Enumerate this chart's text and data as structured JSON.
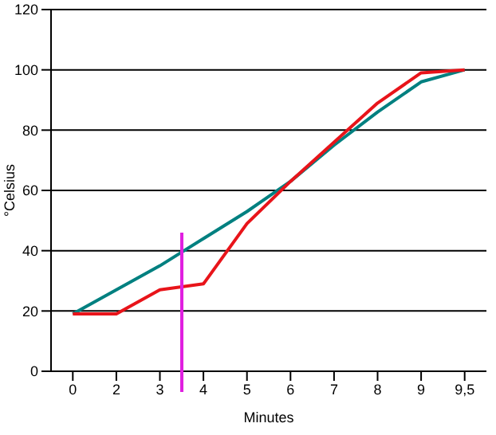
{
  "chart_data": {
    "type": "line",
    "xlabel": "Minutes",
    "ylabel": "°Celsius",
    "categories": [
      "0",
      "2",
      "3",
      "4",
      "5",
      "6",
      "7",
      "8",
      "9",
      "9,5"
    ],
    "series": [
      {
        "color": "#008080",
        "values": [
          19,
          27,
          35,
          44,
          53,
          63,
          75,
          86,
          96,
          100
        ]
      },
      {
        "color": "#e8141a",
        "values": [
          19,
          19,
          27,
          29,
          49,
          63,
          76,
          89,
          99,
          100
        ]
      }
    ],
    "ylim": [
      0,
      120
    ],
    "yticks": [
      0,
      20,
      40,
      60,
      80,
      100,
      120
    ],
    "grid": "y",
    "legend": false,
    "marker": "none",
    "line_style": "solid"
  }
}
